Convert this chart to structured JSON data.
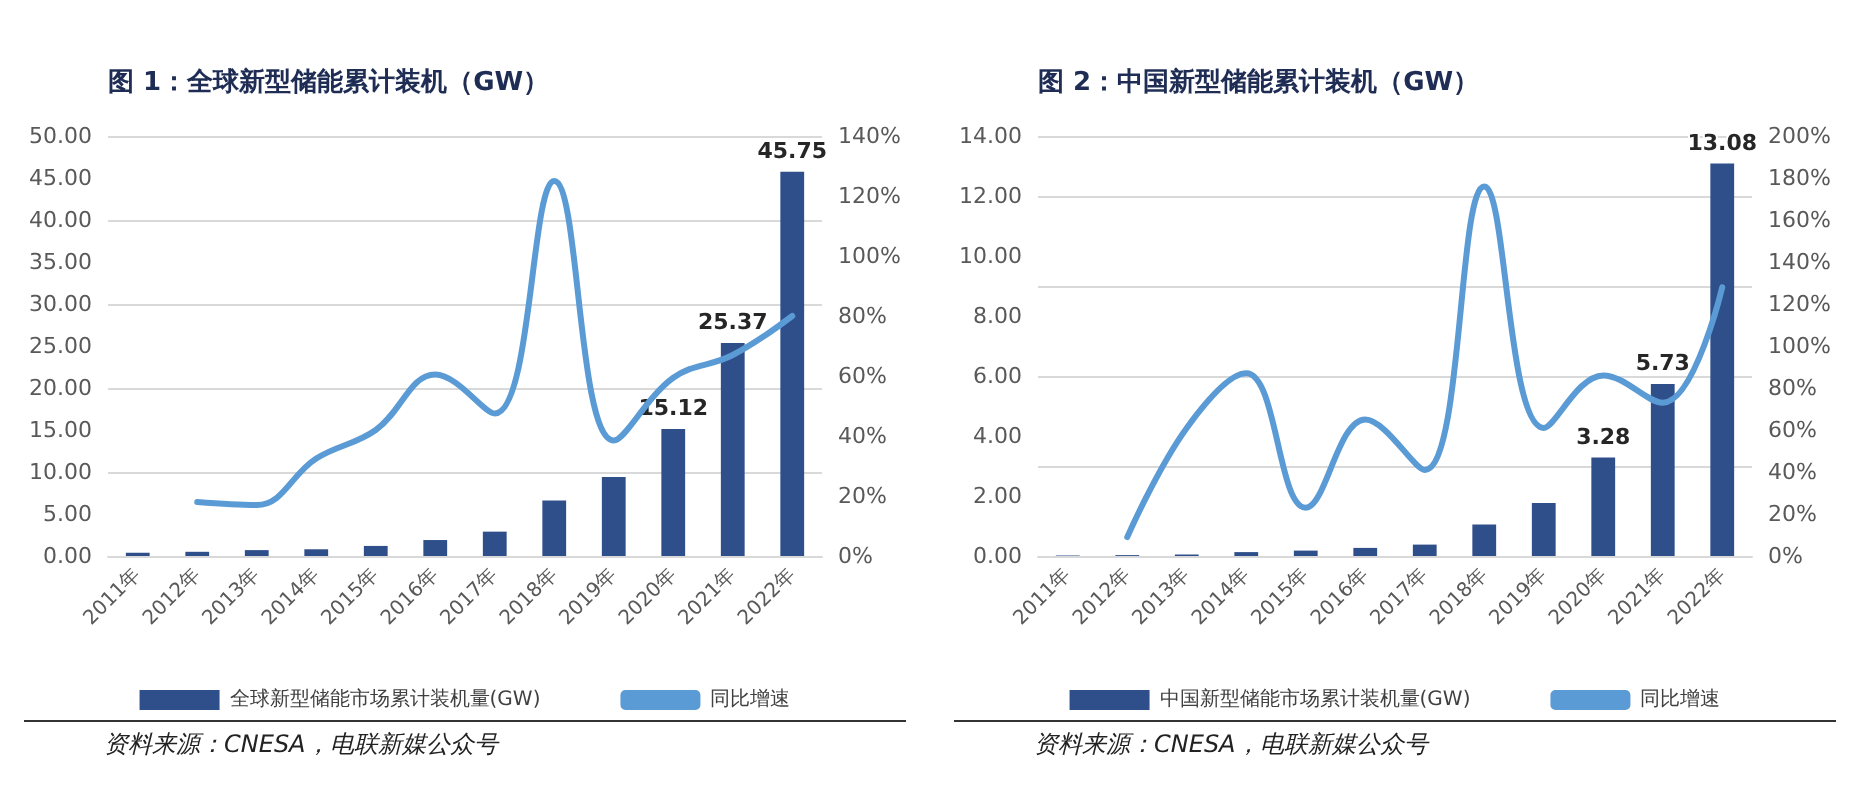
{
  "chart_data": [
    {
      "type": "bar",
      "title": "图 1：全球新型储能累计装机（GW）",
      "categories": [
        "2011年",
        "2012年",
        "2013年",
        "2014年",
        "2015年",
        "2016年",
        "2017年",
        "2018年",
        "2019年",
        "2020年",
        "2021年",
        "2022年"
      ],
      "series": [
        {
          "name": "全球新型储能市场累计装机量(GW)",
          "color": "#2e4f8a",
          "values": [
            0.4,
            0.5,
            0.7,
            0.8,
            1.2,
            1.9,
            2.9,
            6.6,
            9.4,
            15.12,
            25.37,
            45.75
          ],
          "value_labels": [
            null,
            null,
            null,
            null,
            null,
            null,
            null,
            null,
            null,
            "15.12",
            "25.37",
            "45.75"
          ]
        },
        {
          "name": "同比增速",
          "type": "line",
          "axis": "y2",
          "color": "#5b9bd5",
          "values": [
            null,
            18,
            17,
            32.5,
            42,
            60.5,
            47.5,
            125,
            38.5,
            59.4,
            67,
            80
          ]
        }
      ],
      "ylim": [
        0,
        50
      ],
      "yticks": [
        {
          "value": 0,
          "label": "0.00"
        },
        {
          "value": 5,
          "label": "5.00"
        },
        {
          "value": 10,
          "label": "10.00"
        },
        {
          "value": 15,
          "label": "15.00"
        },
        {
          "value": 20,
          "label": "20.00"
        },
        {
          "value": 25,
          "label": "25.00"
        },
        {
          "value": 30,
          "label": "30.00"
        },
        {
          "value": 35,
          "label": "35.00"
        },
        {
          "value": 40,
          "label": "40.00"
        },
        {
          "value": 45,
          "label": "45.00"
        },
        {
          "value": 50,
          "label": "50.00"
        }
      ],
      "y2lim": [
        0,
        140
      ],
      "y2ticks": [
        {
          "value": 0,
          "label": "0%"
        },
        {
          "value": 20,
          "label": "20%"
        },
        {
          "value": 40,
          "label": "40%"
        },
        {
          "value": 60,
          "label": "60%"
        },
        {
          "value": 80,
          "label": "80%"
        },
        {
          "value": 100,
          "label": "100%"
        },
        {
          "value": 120,
          "label": "120%"
        },
        {
          "value": 140,
          "label": "140%"
        }
      ],
      "grid": "y",
      "legend": "bottom",
      "marker": "none",
      "annotations": [
        "资料来源：CNESA，电联新媒公众号"
      ]
    },
    {
      "type": "bar",
      "title": "图 2：中国新型储能累计装机（GW）",
      "categories": [
        "2011年",
        "2012年",
        "2013年",
        "2014年",
        "2015年",
        "2016年",
        "2017年",
        "2018年",
        "2019年",
        "2020年",
        "2021年",
        "2022年"
      ],
      "series": [
        {
          "name": "中国新型储能市场累计装机量(GW)",
          "color": "#2e4f8a",
          "values": [
            0.02,
            0.03,
            0.05,
            0.13,
            0.18,
            0.27,
            0.38,
            1.05,
            1.77,
            3.28,
            5.73,
            13.08
          ],
          "value_labels": [
            null,
            null,
            null,
            null,
            null,
            null,
            null,
            null,
            null,
            "3.28",
            "5.73",
            "13.08"
          ]
        },
        {
          "name": "同比增速",
          "type": "line",
          "axis": "y2",
          "color": "#5b9bd5",
          "values": [
            null,
            9,
            61,
            87,
            23,
            65,
            41,
            176,
            61,
            86,
            73,
            128
          ]
        }
      ],
      "ylim": [
        0,
        14
      ],
      "yticks": [
        {
          "value": 0,
          "label": "0.00"
        },
        {
          "value": 2,
          "label": "2.00"
        },
        {
          "value": 4,
          "label": "4.00"
        },
        {
          "value": 6,
          "label": "6.00"
        },
        {
          "value": 8,
          "label": "8.00"
        },
        {
          "value": 10,
          "label": "10.00"
        },
        {
          "value": 12,
          "label": "12.00"
        },
        {
          "value": 14,
          "label": "14.00"
        }
      ],
      "y2lim": [
        0,
        200
      ],
      "y2ticks": [
        {
          "value": 0,
          "label": "0%"
        },
        {
          "value": 20,
          "label": "20%"
        },
        {
          "value": 40,
          "label": "40%"
        },
        {
          "value": 60,
          "label": "60%"
        },
        {
          "value": 80,
          "label": "80%"
        },
        {
          "value": 100,
          "label": "100%"
        },
        {
          "value": 120,
          "label": "120%"
        },
        {
          "value": 140,
          "label": "140%"
        },
        {
          "value": 160,
          "label": "160%"
        },
        {
          "value": 180,
          "label": "180%"
        },
        {
          "value": 200,
          "label": "200%"
        }
      ],
      "grid": "y",
      "legend": "bottom",
      "marker": "none",
      "annotations": [
        "资料来源：CNESA，电联新媒公众号"
      ]
    }
  ]
}
